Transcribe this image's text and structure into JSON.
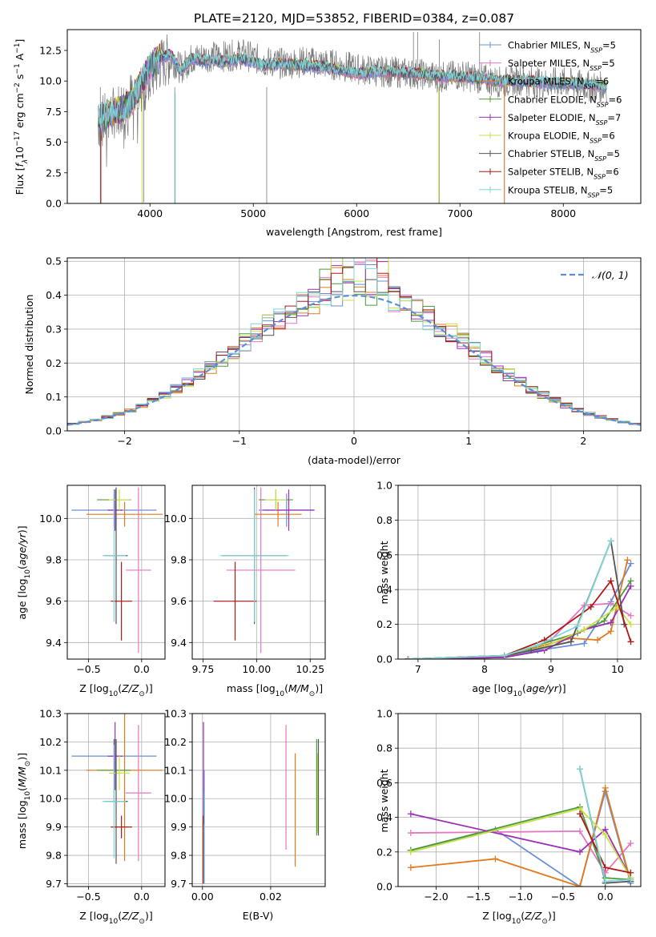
{
  "title": "PLATE=2120, MJD=53852, FIBERID=0384, z=0.087",
  "colors": {
    "series": [
      "#6a8fd6",
      "#e377c2",
      "#e07b1f",
      "#4e9a3a",
      "#9b30b5",
      "#c8e04a",
      "#555555",
      "#b01818",
      "#7fd6d6"
    ],
    "grid": "#b0b0b0",
    "normal_curve": "#5b8fd6"
  },
  "series_names": [
    "Chabrier MILES, N_SSP=5",
    "Salpeter MILES, N_SSP=5",
    "Kroupa MILES, N_SSP=6",
    "Chabrier ELODIE, N_SSP=6",
    "Salpeter ELODIE, N_SSP=7",
    "Kroupa ELODIE, N_SSP=6",
    "Chabrier STELIB, N_SSP=5",
    "Salpeter STELIB, N_SSP=6",
    "Kroupa STELIB, N_SSP=5"
  ],
  "chart_data": [
    {
      "id": "spectrum",
      "type": "line",
      "xlabel": "wavelength [Angstrom, rest frame]",
      "ylabel": "Flux [f_λ 10^-17 erg cm^-2 s^-1 A^-1]",
      "xlim": [
        3200,
        8750
      ],
      "ylim": [
        0,
        14.2
      ],
      "xticks": [
        4000,
        5000,
        6000,
        7000,
        8000
      ],
      "yticks": [
        0.0,
        2.5,
        5.0,
        7.5,
        10.0,
        12.5
      ],
      "ytick_labels": [
        "0.0",
        "2.5",
        "5.0",
        "7.5",
        "10.0",
        "12.5"
      ],
      "legend_position": "upper-right",
      "data_continuum": {
        "x": [
          3500,
          3600,
          3700,
          3800,
          3900,
          4000,
          4100,
          4200,
          4300,
          4400,
          4500,
          4700,
          4900,
          5100,
          5300,
          5500,
          5800,
          6000,
          6200,
          6400,
          6600,
          6800,
          7000,
          7200,
          7400,
          7600,
          7800,
          8000,
          8200,
          8400
        ],
        "y": [
          6.5,
          7.0,
          7.8,
          8.6,
          9.2,
          10.2,
          11.4,
          11.8,
          11.0,
          11.8,
          12.0,
          12.0,
          12.2,
          11.6,
          11.4,
          11.6,
          11.3,
          11.0,
          10.8,
          10.7,
          10.6,
          10.3,
          10.5,
          10.2,
          9.9,
          10.1,
          9.8,
          9.9,
          9.6,
          9.5
        ]
      },
      "model_continuum": {
        "x": [
          3500,
          3600,
          3700,
          3800,
          3900,
          4000,
          4100,
          4200,
          4300,
          4400,
          4500,
          4700,
          4900,
          5100,
          5300,
          5500,
          5800,
          6000,
          6200,
          6400,
          6600,
          6800,
          7000,
          7200,
          7400,
          7600,
          7800,
          8000,
          8200,
          8400
        ],
        "y": [
          6.8,
          7.4,
          7.6,
          8.0,
          9.6,
          11.2,
          11.9,
          12.2,
          10.8,
          11.8,
          11.7,
          11.6,
          11.8,
          11.3,
          11.4,
          11.3,
          11.0,
          10.6,
          10.8,
          10.7,
          10.6,
          10.4,
          10.3,
          10.2,
          10.0,
          10.0,
          9.9,
          9.8,
          9.8,
          9.6
        ]
      }
    },
    {
      "id": "residuals",
      "type": "histogram",
      "xlabel": "(data-model)/error",
      "ylabel": "Normed distribution",
      "xlim": [
        -2.5,
        2.5
      ],
      "ylim": [
        0,
        0.51
      ],
      "xticks": [
        -2,
        -1,
        0,
        1,
        2
      ],
      "xtick_labels": [
        "−2",
        "−1",
        "0",
        "1",
        "2"
      ],
      "yticks": [
        0.0,
        0.1,
        0.2,
        0.3,
        0.4,
        0.5
      ],
      "ytick_labels": [
        "0.0",
        "0.1",
        "0.2",
        "0.3",
        "0.4",
        "0.5"
      ],
      "legend": "𝒩(0, 1)",
      "legend_position": "upper-right",
      "bin_width": 0.1
    },
    {
      "id": "age_vs_Z",
      "type": "errorbar",
      "xlabel": "Z [log10(Z/Z☉)]",
      "ylabel": "age  [log10(age/yr)]",
      "xlim": [
        -0.7,
        0.22
      ],
      "ylim": [
        9.32,
        10.16
      ],
      "xticks": [
        -0.5,
        0.0
      ],
      "xtick_labels": [
        "−0.5",
        "0.0"
      ],
      "yticks": [
        9.4,
        9.6,
        9.8,
        10.0
      ],
      "ytick_labels": [
        "9.4",
        "9.6",
        "9.8",
        "10.0"
      ],
      "points": [
        {
          "x": -0.26,
          "y": 10.04,
          "xerr": 0.4,
          "yerr": 0.08
        },
        {
          "x": -0.03,
          "y": 9.75,
          "xerr": 0.12,
          "yerr": 0.4
        },
        {
          "x": -0.16,
          "y": 10.02,
          "xerr": 0.36,
          "yerr": 0.06
        },
        {
          "x": -0.26,
          "y": 10.09,
          "xerr": 0.16,
          "yerr": 0.05
        },
        {
          "x": -0.25,
          "y": 10.04,
          "xerr": 0.07,
          "yerr": 0.1
        },
        {
          "x": -0.21,
          "y": 10.09,
          "xerr": 0.1,
          "yerr": 0.05
        },
        {
          "x": -0.24,
          "y": 9.82,
          "xerr": 0.11,
          "yerr": 0.33
        },
        {
          "x": -0.19,
          "y": 9.6,
          "xerr": 0.1,
          "yerr": 0.19
        },
        {
          "x": -0.26,
          "y": 9.82,
          "xerr": 0.11,
          "yerr": 0.32
        }
      ]
    },
    {
      "id": "age_vs_mass",
      "type": "errorbar",
      "xlabel": "mass [log10(M/M☉)]",
      "ylabel": "",
      "xlim": [
        9.7,
        10.32
      ],
      "ylim": [
        9.32,
        10.16
      ],
      "xticks": [
        9.75,
        10.0,
        10.25
      ],
      "xtick_labels": [
        "9.75",
        "10.00",
        "10.25"
      ],
      "yticks": [
        9.4,
        9.6,
        9.8,
        10.0
      ],
      "ytick_labels": [
        "9.4",
        "9.6",
        "9.8",
        "10.0"
      ],
      "points": [
        {
          "x": 10.14,
          "y": 10.04,
          "xerr": 0.13,
          "yerr": 0.08
        },
        {
          "x": 10.02,
          "y": 9.75,
          "xerr": 0.16,
          "yerr": 0.4
        },
        {
          "x": 10.1,
          "y": 10.02,
          "xerr": 0.11,
          "yerr": 0.06
        },
        {
          "x": 10.09,
          "y": 10.09,
          "xerr": 0.08,
          "yerr": 0.05
        },
        {
          "x": 10.15,
          "y": 10.04,
          "xerr": 0.12,
          "yerr": 0.1
        },
        {
          "x": 10.09,
          "y": 10.09,
          "xerr": 0.05,
          "yerr": 0.05
        },
        {
          "x": 9.99,
          "y": 9.82,
          "xerr": 0.15,
          "yerr": 0.33
        },
        {
          "x": 9.9,
          "y": 9.6,
          "xerr": 0.1,
          "yerr": 0.19
        },
        {
          "x": 9.99,
          "y": 9.82,
          "xerr": 0.16,
          "yerr": 0.32
        }
      ]
    },
    {
      "id": "weight_vs_age",
      "type": "line",
      "xlabel": "age  [log10(age/yr)]",
      "ylabel": "mass weight",
      "xlim": [
        6.7,
        10.35
      ],
      "ylim": [
        0,
        1.0
      ],
      "xticks": [
        7,
        8,
        9,
        10
      ],
      "xtick_labels": [
        "7",
        "8",
        "9",
        "10"
      ],
      "yticks": [
        0.0,
        0.2,
        0.4,
        0.6,
        0.8,
        1.0
      ],
      "ytick_labels": [
        "0.0",
        "0.2",
        "0.4",
        "0.6",
        "0.8",
        "1.0"
      ],
      "series": [
        {
          "x": [
            6.85,
            8.3,
            8.8,
            9.5,
            9.9,
            10.2
          ],
          "y": [
            0.0,
            0.01,
            0.05,
            0.09,
            0.33,
            0.55
          ]
        },
        {
          "x": [
            6.85,
            8.3,
            8.6,
            9.0,
            9.5,
            9.9,
            10.2
          ],
          "y": [
            0.0,
            0.01,
            0.05,
            0.11,
            0.31,
            0.32,
            0.25
          ]
        },
        {
          "x": [
            6.85,
            8.3,
            8.8,
            9.3,
            9.7,
            9.9,
            10.15
          ],
          "y": [
            0.0,
            0.01,
            0.07,
            0.12,
            0.11,
            0.16,
            0.57
          ]
        },
        {
          "x": [
            6.85,
            8.3,
            8.8,
            9.4,
            9.8,
            10.2
          ],
          "y": [
            0.0,
            0.01,
            0.08,
            0.15,
            0.22,
            0.45
          ]
        },
        {
          "x": [
            6.85,
            8.3,
            8.9,
            9.5,
            9.9,
            10.2
          ],
          "y": [
            0.0,
            0.01,
            0.05,
            0.17,
            0.21,
            0.42
          ]
        },
        {
          "x": [
            6.85,
            8.3,
            8.9,
            9.5,
            10.0,
            10.2
          ],
          "y": [
            0.0,
            0.02,
            0.07,
            0.17,
            0.3,
            0.2
          ]
        },
        {
          "x": [
            6.85,
            8.3,
            8.7,
            9.3,
            9.9,
            10.1
          ],
          "y": [
            0.0,
            0.02,
            0.05,
            0.1,
            0.68,
            0.2
          ]
        },
        {
          "x": [
            6.85,
            8.3,
            8.9,
            9.6,
            9.9,
            10.2
          ],
          "y": [
            0.0,
            0.02,
            0.11,
            0.3,
            0.45,
            0.1
          ]
        },
        {
          "x": [
            6.85,
            8.3,
            8.8,
            9.4,
            9.9
          ],
          "y": [
            0.0,
            0.02,
            0.08,
            0.19,
            0.68
          ]
        }
      ]
    },
    {
      "id": "mass_vs_Z",
      "type": "errorbar",
      "xlabel": "Z [log10(Z/Z☉)]",
      "ylabel": "mass [log10(M/M☉)]",
      "xlim": [
        -0.7,
        0.22
      ],
      "ylim": [
        9.69,
        10.3
      ],
      "xticks": [
        -0.5,
        0.0
      ],
      "xtick_labels": [
        "−0.5",
        "0.0"
      ],
      "yticks": [
        9.7,
        9.8,
        9.9,
        10.0,
        10.1,
        10.2,
        10.3
      ],
      "ytick_labels": [
        "9.7",
        "9.8",
        "9.9",
        "10.0",
        "10.1",
        "10.2",
        "10.3"
      ],
      "points": [
        {
          "x": -0.26,
          "y": 10.15,
          "xerr": 0.4,
          "yerr": 0.06
        },
        {
          "x": -0.03,
          "y": 10.02,
          "xerr": 0.12,
          "yerr": 0.24
        },
        {
          "x": -0.16,
          "y": 10.1,
          "xerr": 0.36,
          "yerr": 0.32
        },
        {
          "x": -0.26,
          "y": 10.1,
          "xerr": 0.16,
          "yerr": 0.11
        },
        {
          "x": -0.25,
          "y": 10.15,
          "xerr": 0.07,
          "yerr": 0.12
        },
        {
          "x": -0.21,
          "y": 10.09,
          "xerr": 0.1,
          "yerr": 0.06
        },
        {
          "x": -0.24,
          "y": 9.99,
          "xerr": 0.11,
          "yerr": 0.22
        },
        {
          "x": -0.19,
          "y": 9.9,
          "xerr": 0.1,
          "yerr": 0.04
        },
        {
          "x": -0.26,
          "y": 9.99,
          "xerr": 0.11,
          "yerr": 0.2
        }
      ]
    },
    {
      "id": "mass_vs_EBV",
      "type": "errorbar",
      "xlabel": "E(B-V)",
      "ylabel": "",
      "xlim": [
        -0.003,
        0.036
      ],
      "ylim": [
        9.69,
        10.3
      ],
      "xticks": [
        0.0,
        0.02
      ],
      "xtick_labels": [
        "0.00",
        "0.02"
      ],
      "yticks": [
        9.7,
        9.8,
        9.9,
        10.0,
        10.1,
        10.2,
        10.3
      ],
      "ytick_labels": [
        "9.7",
        "9.8",
        "9.9",
        "10.0",
        "10.1",
        "10.2",
        "10.3"
      ],
      "points": [
        {
          "x": 0.0005,
          "y": 9.9,
          "yerr": 0.2
        },
        {
          "x": 0.0245,
          "y": 10.04,
          "yerr": 0.22
        },
        {
          "x": 0.0272,
          "y": 9.96,
          "yerr": 0.2
        },
        {
          "x": 0.0335,
          "y": 10.04,
          "yerr": 0.17
        },
        {
          "x": 0.0003,
          "y": 10.09,
          "yerr": 0.18
        },
        {
          "x": 0.0338,
          "y": 10.02,
          "yerr": 0.14
        },
        {
          "x": 0.034,
          "y": 10.04,
          "yerr": 0.17
        },
        {
          "x": 0.0002,
          "y": 9.82,
          "yerr": 0.12
        },
        {
          "x": 0.0006,
          "y": 9.86,
          "yerr": 0.16
        }
      ]
    },
    {
      "id": "weight_vs_Z",
      "type": "line",
      "xlabel": "Z [log10(Z/Z☉)]",
      "ylabel": "mass weight",
      "xlim": [
        -2.45,
        0.42
      ],
      "ylim": [
        0,
        1.0
      ],
      "xticks": [
        -2.0,
        -1.5,
        -1.0,
        -0.5,
        0.0
      ],
      "xtick_labels": [
        "−2.0",
        "−1.5",
        "−1.0",
        "−0.5",
        "0.0"
      ],
      "yticks": [
        0.0,
        0.2,
        0.4,
        0.6,
        0.8,
        1.0
      ],
      "ytick_labels": [
        "0.0",
        "0.2",
        "0.4",
        "0.6",
        "0.8",
        "1.0"
      ],
      "series": [
        {
          "x": [
            -2.3,
            -1.3,
            -0.3,
            0.0,
            0.3
          ],
          "y": [
            0.21,
            0.33,
            0.0,
            0.55,
            0.02
          ]
        },
        {
          "x": [
            -2.3,
            -0.3,
            0.0,
            0.3
          ],
          "y": [
            0.31,
            0.32,
            0.08,
            0.25
          ]
        },
        {
          "x": [
            -2.3,
            -1.3,
            -0.3,
            0.0,
            0.3
          ],
          "y": [
            0.11,
            0.16,
            0.0,
            0.57,
            0.03
          ]
        },
        {
          "x": [
            -2.3,
            -0.3,
            0.0,
            0.3
          ],
          "y": [
            0.21,
            0.46,
            0.05,
            0.04
          ]
        },
        {
          "x": [
            -2.3,
            -0.3,
            0.0,
            0.3
          ],
          "y": [
            0.42,
            0.2,
            0.33,
            0.05
          ]
        },
        {
          "x": [
            -2.3,
            -0.3,
            0.0,
            0.3
          ],
          "y": [
            0.2,
            0.45,
            0.3,
            0.05
          ]
        },
        {
          "x": [
            -0.3,
            0.0,
            0.3
          ],
          "y": [
            0.68,
            0.02,
            0.03
          ]
        },
        {
          "x": [
            -0.3,
            0.0,
            0.3
          ],
          "y": [
            0.42,
            0.11,
            0.08
          ]
        },
        {
          "x": [
            -0.3,
            0.0,
            0.3
          ],
          "y": [
            0.68,
            0.03,
            0.04
          ]
        }
      ]
    }
  ]
}
